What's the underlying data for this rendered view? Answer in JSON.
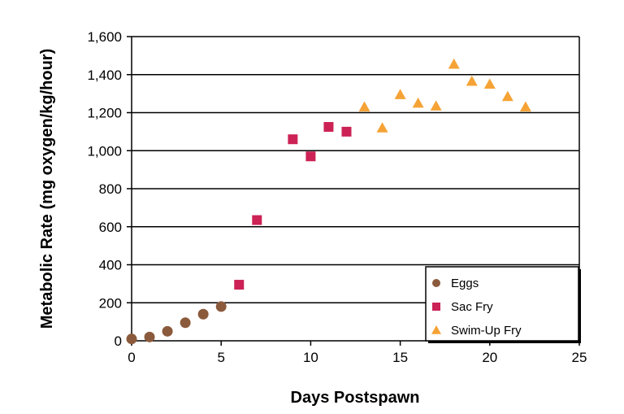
{
  "chart_data": {
    "type": "scatter",
    "title": "",
    "xlabel": "Days Postspawn",
    "ylabel": "Metabolic Rate (mg oxygen/kg/hour)",
    "xlim": [
      0,
      25
    ],
    "ylim": [
      0,
      1600
    ],
    "xticks": [
      0,
      5,
      10,
      15,
      20,
      25
    ],
    "xtick_labels": [
      "0",
      "5",
      "10",
      "15",
      "20",
      "25"
    ],
    "yticks": [
      0,
      200,
      400,
      600,
      800,
      1000,
      1200,
      1400,
      1600
    ],
    "ytick_labels": [
      "0",
      "200",
      "400",
      "600",
      "800",
      "1,000",
      "1,200",
      "1,400",
      "1,600"
    ],
    "grid": "horizontal",
    "legend_position": "bottom-right",
    "series": [
      {
        "name": "Eggs",
        "marker": "circle",
        "color": "#8B5A3C",
        "points": [
          [
            0,
            10
          ],
          [
            1,
            20
          ],
          [
            2,
            50
          ],
          [
            3,
            95
          ],
          [
            4,
            140
          ],
          [
            5,
            180
          ]
        ]
      },
      {
        "name": "Sac Fry",
        "marker": "square",
        "color": "#CC2255",
        "points": [
          [
            6,
            295
          ],
          [
            7,
            635
          ],
          [
            9,
            1060
          ],
          [
            10,
            970
          ],
          [
            11,
            1125
          ],
          [
            12,
            1100
          ]
        ]
      },
      {
        "name": "Swim-Up Fry",
        "marker": "triangle",
        "color": "#F5A336",
        "points": [
          [
            13,
            1230
          ],
          [
            14,
            1120
          ],
          [
            15,
            1295
          ],
          [
            16,
            1250
          ],
          [
            17,
            1235
          ],
          [
            18,
            1455
          ],
          [
            19,
            1365
          ],
          [
            20,
            1350
          ],
          [
            21,
            1285
          ],
          [
            22,
            1230
          ]
        ]
      }
    ]
  }
}
